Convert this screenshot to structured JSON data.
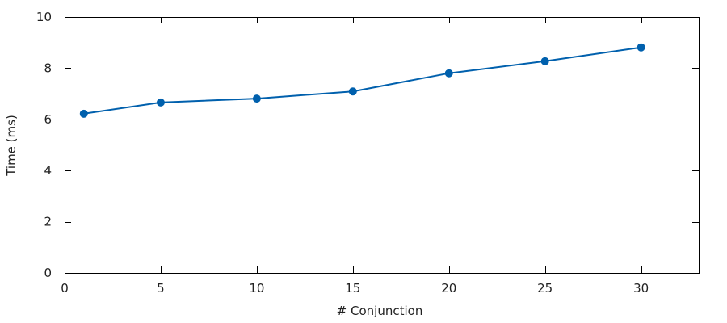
{
  "chart_data": {
    "type": "line",
    "xlabel": "# Conjunction",
    "ylabel": "Time (ms)",
    "xlim": [
      0,
      33
    ],
    "ylim": [
      0,
      10
    ],
    "xticks": [
      0,
      5,
      10,
      15,
      20,
      25,
      30
    ],
    "yticks": [
      0,
      2,
      4,
      6,
      8,
      10
    ],
    "grid": false,
    "legend": "none",
    "series": [
      {
        "x": [
          1,
          5,
          10,
          15,
          20,
          25,
          30
        ],
        "y": [
          6.22,
          6.66,
          6.81,
          7.09,
          7.8,
          8.27,
          8.81
        ],
        "color": "#0060ad",
        "marker": "circle"
      }
    ]
  }
}
